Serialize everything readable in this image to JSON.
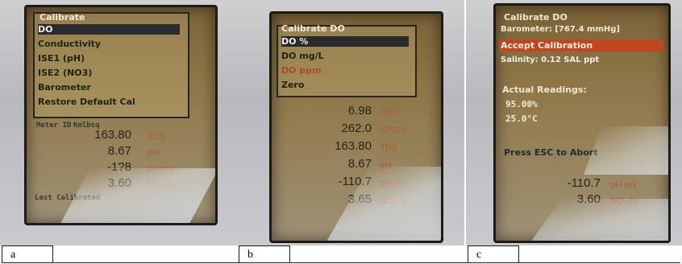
{
  "panels": {
    "a": {
      "label": "a",
      "menu_title": "Calibrate",
      "menu_items": [
        "DO",
        "Conductivity",
        "ISE1 (pH)",
        "ISE2 (NO3)",
        "Barometer",
        "Restore Default Cal"
      ],
      "selected_index": 0,
      "status_row": "Meter ID",
      "status_row_2": "Kmlbsq",
      "readings": [
        {
          "value": "163.80",
          "unit": "TDS"
        },
        {
          "value": "8.67",
          "unit": "pH"
        },
        {
          "value": "-1?8",
          "unit": "pH mV"
        },
        {
          "value": "3.60",
          "unit": "NO₃-N"
        }
      ],
      "footer": "Last Calibrated"
    },
    "b": {
      "label": "b",
      "menu_title": "Calibrate DO",
      "menu_items": [
        "DO %",
        "DO mg/L",
        "DO ppm",
        "Zero"
      ],
      "selected_index": 0,
      "readings": [
        {
          "value": "6.98",
          "unit": "DO ?"
        },
        {
          "value": "262.0",
          "unit": "SPC-N"
        },
        {
          "value": "163.80",
          "unit": "TDS"
        },
        {
          "value": "8.67",
          "unit": "pH"
        },
        {
          "value": "-110.7",
          "unit": "pH mV"
        },
        {
          "value": "3.65",
          "unit": "NO₃-N"
        }
      ]
    },
    "c": {
      "label": "c",
      "title": "Calibrate DO",
      "barometer": "Barometer: [767.4 mmHg]",
      "action": "Accept Calibration",
      "salinity": "Salinity: 0.12 SAL ppt",
      "actual_readings": "Actual Readings:",
      "do_value": "95.00%",
      "temp_value": "25.0°C",
      "escape_hint": "Press ESC to Abort",
      "readings": [
        {
          "value": "-110.7",
          "unit": "pH mV"
        },
        {
          "value": "3.60",
          "unit": "NO₃-N"
        }
      ]
    }
  }
}
